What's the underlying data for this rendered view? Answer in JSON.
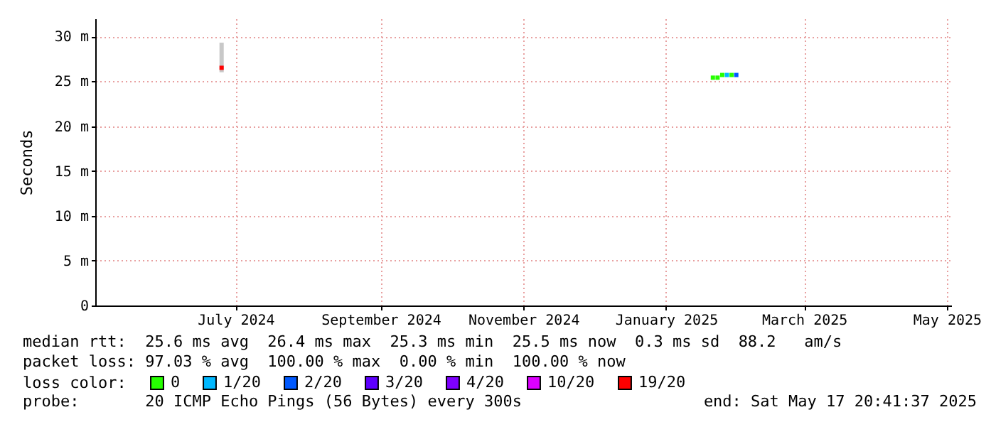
{
  "chart_data": {
    "type": "scatter",
    "ylabel": "Seconds",
    "marker": "square",
    "grid": true,
    "legend": "bottom",
    "legend_title": "loss color:",
    "xlim": [
      "2024-05-17",
      "2025-05-17T20:41"
    ],
    "xticks": [
      {
        "value": "2024-07-16",
        "label": "July 2024"
      },
      {
        "value": "2024-09-16",
        "label": "September 2024"
      },
      {
        "value": "2024-11-16",
        "label": "November 2024"
      },
      {
        "value": "2025-01-16",
        "label": "January 2025"
      },
      {
        "value": "2025-03-16",
        "label": "March 2025"
      },
      {
        "value": "2025-05-16",
        "label": "May 2025"
      }
    ],
    "ylim": [
      0,
      32
    ],
    "yticks": [
      0,
      {
        "value": 5,
        "label": "5 m"
      },
      {
        "value": 10,
        "label": "10 m"
      },
      {
        "value": 15,
        "label": "15 m"
      },
      {
        "value": 20,
        "label": "20 m"
      },
      {
        "value": 25,
        "label": "25 m"
      },
      {
        "value": 30,
        "label": "30 m"
      }
    ],
    "series": [
      {
        "name": "0",
        "color": "#26ff00",
        "x": [
          "2025-02-05",
          "2025-02-07",
          "2025-02-09",
          "2025-02-13"
        ],
        "values": [
          25.4,
          25.4,
          25.7,
          25.7
        ]
      },
      {
        "name": "1/20",
        "color": "#00b8ff",
        "x": [
          "2025-02-11"
        ],
        "values": [
          25.7
        ]
      },
      {
        "name": "2/20",
        "color": "#0059ff",
        "x": [
          "2025-02-15"
        ],
        "values": [
          25.7
        ]
      },
      {
        "name": "3/20",
        "color": "#5e00ff"
      },
      {
        "name": "4/20",
        "color": "#7e00ff"
      },
      {
        "name": "10/20",
        "color": "#dd00ff"
      },
      {
        "name": "19/20",
        "color": "#ff0000",
        "x": [
          "2024-07-10"
        ],
        "values": [
          26.5
        ],
        "errors": [
          [
            26.0,
            29.3
          ]
        ]
      }
    ],
    "annotations": [
      "median rtt:  25.6 ms avg  26.4 ms max  25.3 ms min  25.5 ms now  0.3 ms sd  88.2   am/s",
      "packet loss: 97.03 % avg  100.00 % max  0.00 % min  100.00 % now",
      "probe:       20 ICMP Echo Pings (56 Bytes) every 300s",
      "end: Sat May 17 20:41:37 2025"
    ]
  }
}
